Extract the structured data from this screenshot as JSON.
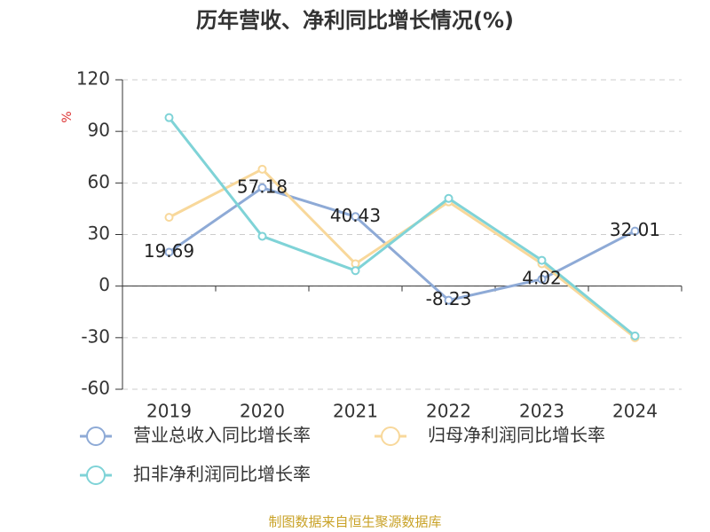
{
  "chart_data": {
    "type": "line",
    "title": "历年营收、净利同比增长情况(%)",
    "y_label": "%",
    "source": "制图数据来自恒生聚源数据库",
    "categories": [
      "2019",
      "2020",
      "2021",
      "2022",
      "2023",
      "2024"
    ],
    "series": [
      {
        "name": "营业总收入同比增长率",
        "color": "#8eaad6",
        "values": [
          19.69,
          57.18,
          40.43,
          -8.23,
          4.02,
          32.01
        ],
        "data_labels": true
      },
      {
        "name": "归母净利润同比增长率",
        "color": "#f8d89b",
        "values": [
          40,
          68,
          13,
          49,
          13,
          -30
        ]
      },
      {
        "name": "扣非净利润同比增长率",
        "color": "#7fd3d7",
        "values": [
          98,
          29,
          9,
          51,
          15,
          -29
        ]
      }
    ],
    "ylim": [
      -60,
      120
    ],
    "yticks": [
      -60,
      -30,
      0,
      30,
      60,
      90,
      120
    ],
    "grid": true
  }
}
